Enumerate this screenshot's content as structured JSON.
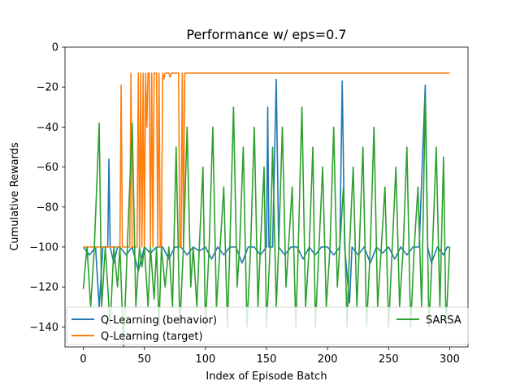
{
  "chart_data": {
    "type": "line",
    "title": "Performance w/ eps=0.7",
    "xlabel": "Index of Episode Batch",
    "ylabel": "Cumulative Rewards",
    "xlim": [
      -15,
      315
    ],
    "ylim": [
      -150,
      0
    ],
    "xticks": [
      0,
      50,
      100,
      150,
      200,
      250,
      300
    ],
    "yticks": [
      0,
      -20,
      -40,
      -60,
      -80,
      -100,
      -120,
      -140
    ],
    "grid": false,
    "legend_position": "bottom",
    "series_colors": [
      "#1f77b4",
      "#ff7f0e",
      "#2ca02c"
    ],
    "series": [
      {
        "name": "Q-Learning (behavior)",
        "color": "#1f77b4",
        "points": [
          [
            0,
            -100
          ],
          [
            5,
            -104
          ],
          [
            10,
            -100
          ],
          [
            13,
            -130
          ],
          [
            16,
            -100
          ],
          [
            20,
            -100
          ],
          [
            21,
            -56
          ],
          [
            22,
            -100
          ],
          [
            25,
            -108
          ],
          [
            28,
            -100
          ],
          [
            30,
            -100
          ],
          [
            35,
            -104
          ],
          [
            40,
            -100
          ],
          [
            45,
            -112
          ],
          [
            50,
            -100
          ],
          [
            55,
            -103
          ],
          [
            60,
            -100
          ],
          [
            65,
            -100
          ],
          [
            70,
            -106
          ],
          [
            75,
            -100
          ],
          [
            80,
            -100
          ],
          [
            85,
            -104
          ],
          [
            90,
            -100
          ],
          [
            95,
            -102
          ],
          [
            100,
            -100
          ],
          [
            105,
            -106
          ],
          [
            110,
            -100
          ],
          [
            115,
            -104
          ],
          [
            120,
            -100
          ],
          [
            125,
            -100
          ],
          [
            130,
            -108
          ],
          [
            135,
            -100
          ],
          [
            140,
            -100
          ],
          [
            145,
            -104
          ],
          [
            150,
            -100
          ],
          [
            151,
            -30
          ],
          [
            152,
            -100
          ],
          [
            155,
            -100
          ],
          [
            158,
            -16
          ],
          [
            160,
            -100
          ],
          [
            165,
            -104
          ],
          [
            170,
            -100
          ],
          [
            175,
            -100
          ],
          [
            180,
            -106
          ],
          [
            185,
            -100
          ],
          [
            190,
            -104
          ],
          [
            195,
            -100
          ],
          [
            200,
            -100
          ],
          [
            205,
            -104
          ],
          [
            210,
            -100
          ],
          [
            212,
            -17
          ],
          [
            214,
            -100
          ],
          [
            218,
            -128
          ],
          [
            220,
            -100
          ],
          [
            225,
            -104
          ],
          [
            230,
            -100
          ],
          [
            235,
            -108
          ],
          [
            240,
            -100
          ],
          [
            245,
            -103
          ],
          [
            250,
            -100
          ],
          [
            255,
            -106
          ],
          [
            260,
            -100
          ],
          [
            265,
            -104
          ],
          [
            270,
            -100
          ],
          [
            275,
            -100
          ],
          [
            280,
            -19
          ],
          [
            282,
            -100
          ],
          [
            285,
            -108
          ],
          [
            290,
            -100
          ],
          [
            295,
            -104
          ],
          [
            298,
            -100
          ],
          [
            300,
            -100
          ]
        ]
      },
      {
        "name": "Q-Learning (target)",
        "color": "#ff7f0e",
        "points": [
          [
            0,
            -100
          ],
          [
            30,
            -100
          ],
          [
            31,
            -19
          ],
          [
            32,
            -100
          ],
          [
            38,
            -100
          ],
          [
            39,
            -13
          ],
          [
            40,
            -100
          ],
          [
            44,
            -100
          ],
          [
            45,
            -13
          ],
          [
            46,
            -100
          ],
          [
            47,
            -13
          ],
          [
            48,
            -100
          ],
          [
            49,
            -13
          ],
          [
            50,
            -100
          ],
          [
            51,
            -13
          ],
          [
            52,
            -40
          ],
          [
            53,
            -13
          ],
          [
            54,
            -13
          ],
          [
            55,
            -100
          ],
          [
            56,
            -13
          ],
          [
            57,
            -100
          ],
          [
            58,
            -13
          ],
          [
            59,
            -13
          ],
          [
            60,
            -13
          ],
          [
            61,
            -100
          ],
          [
            62,
            -13
          ],
          [
            63,
            -100
          ],
          [
            64,
            -100
          ],
          [
            65,
            -13
          ],
          [
            66,
            -16
          ],
          [
            67,
            -13
          ],
          [
            68,
            -13
          ],
          [
            69,
            -13
          ],
          [
            70,
            -13
          ],
          [
            71,
            -15
          ],
          [
            72,
            -13
          ],
          [
            73,
            -13
          ],
          [
            74,
            -13
          ],
          [
            75,
            -13
          ],
          [
            76,
            -13
          ],
          [
            77,
            -13
          ],
          [
            78,
            -13
          ],
          [
            79,
            -100
          ],
          [
            80,
            -100
          ],
          [
            81,
            -13
          ],
          [
            82,
            -100
          ],
          [
            83,
            -13
          ],
          [
            84,
            -13
          ],
          [
            300,
            -13
          ]
        ]
      },
      {
        "name": "SARSA",
        "color": "#2ca02c",
        "points": [
          [
            0,
            -121
          ],
          [
            3,
            -100
          ],
          [
            6,
            -130
          ],
          [
            9,
            -100
          ],
          [
            13,
            -38
          ],
          [
            15,
            -130
          ],
          [
            18,
            -100
          ],
          [
            22,
            -140
          ],
          [
            25,
            -100
          ],
          [
            28,
            -120
          ],
          [
            30,
            -100
          ],
          [
            33,
            -150
          ],
          [
            36,
            -100
          ],
          [
            40,
            -38
          ],
          [
            43,
            -130
          ],
          [
            46,
            -100
          ],
          [
            48,
            -110
          ],
          [
            50,
            -100
          ],
          [
            53,
            -130
          ],
          [
            55,
            -100
          ],
          [
            58,
            -126
          ],
          [
            60,
            -100
          ],
          [
            62,
            -140
          ],
          [
            64,
            -100
          ],
          [
            67,
            -120
          ],
          [
            70,
            -100
          ],
          [
            73,
            -130
          ],
          [
            76,
            -50
          ],
          [
            79,
            -140
          ],
          [
            82,
            -100
          ],
          [
            85,
            -40
          ],
          [
            88,
            -120
          ],
          [
            90,
            -100
          ],
          [
            93,
            -130
          ],
          [
            95,
            -100
          ],
          [
            98,
            -60
          ],
          [
            100,
            -140
          ],
          [
            103,
            -100
          ],
          [
            106,
            -40
          ],
          [
            109,
            -130
          ],
          [
            112,
            -100
          ],
          [
            115,
            -70
          ],
          [
            118,
            -140
          ],
          [
            120,
            -100
          ],
          [
            123,
            -30
          ],
          [
            126,
            -120
          ],
          [
            128,
            -100
          ],
          [
            131,
            -50
          ],
          [
            134,
            -140
          ],
          [
            137,
            -100
          ],
          [
            140,
            -40
          ],
          [
            143,
            -130
          ],
          [
            145,
            -100
          ],
          [
            148,
            -60
          ],
          [
            150,
            -140
          ],
          [
            153,
            -100
          ],
          [
            155,
            -50
          ],
          [
            158,
            -130
          ],
          [
            160,
            -100
          ],
          [
            163,
            -40
          ],
          [
            166,
            -120
          ],
          [
            168,
            -100
          ],
          [
            171,
            -70
          ],
          [
            174,
            -140
          ],
          [
            176,
            -100
          ],
          [
            179,
            -30
          ],
          [
            182,
            -130
          ],
          [
            185,
            -100
          ],
          [
            188,
            -50
          ],
          [
            190,
            -140
          ],
          [
            193,
            -100
          ],
          [
            196,
            -60
          ],
          [
            199,
            -130
          ],
          [
            202,
            -100
          ],
          [
            205,
            -40
          ],
          [
            208,
            -120
          ],
          [
            210,
            -100
          ],
          [
            213,
            -70
          ],
          [
            216,
            -140
          ],
          [
            218,
            -100
          ],
          [
            221,
            -60
          ],
          [
            224,
            -130
          ],
          [
            226,
            -100
          ],
          [
            229,
            -50
          ],
          [
            232,
            -140
          ],
          [
            235,
            -100
          ],
          [
            238,
            -40
          ],
          [
            241,
            -130
          ],
          [
            244,
            -100
          ],
          [
            247,
            -70
          ],
          [
            250,
            -140
          ],
          [
            253,
            -100
          ],
          [
            256,
            -60
          ],
          [
            259,
            -130
          ],
          [
            262,
            -100
          ],
          [
            265,
            -50
          ],
          [
            268,
            -140
          ],
          [
            271,
            -100
          ],
          [
            274,
            -70
          ],
          [
            277,
            -130
          ],
          [
            280,
            -24
          ],
          [
            283,
            -140
          ],
          [
            286,
            -100
          ],
          [
            289,
            -50
          ],
          [
            292,
            -130
          ],
          [
            295,
            -55
          ],
          [
            297,
            -140
          ],
          [
            300,
            -100
          ]
        ]
      }
    ]
  }
}
